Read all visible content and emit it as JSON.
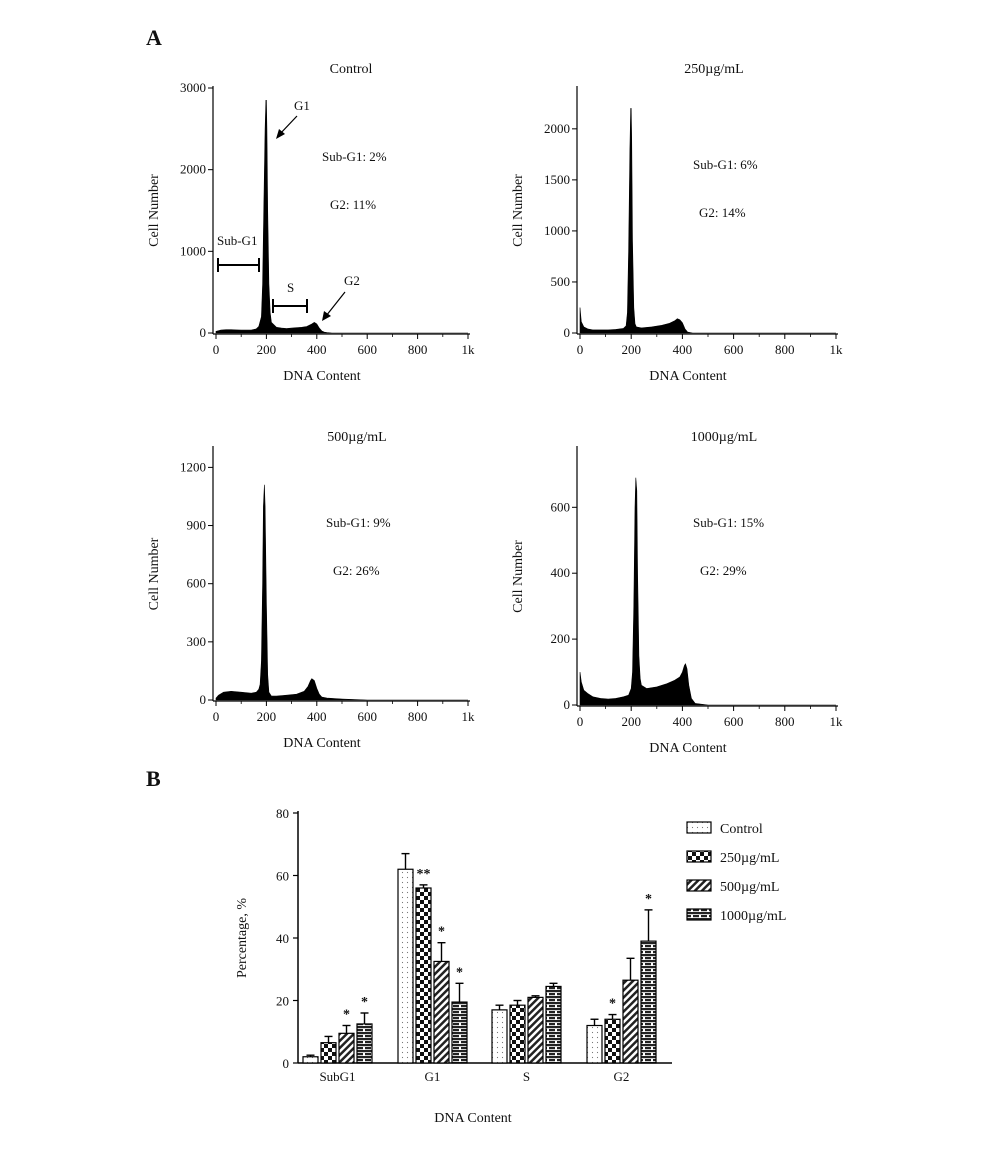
{
  "figure": {
    "panel_a_label": "A",
    "panel_b_label": "B"
  },
  "chart_data": [
    {
      "type": "area",
      "title": "Control",
      "xlabel": "DNA Content",
      "ylabel": "Cell Number",
      "xlim": [
        0,
        1000
      ],
      "ylim": [
        0,
        3000
      ],
      "x_ticks": [
        0,
        200,
        400,
        600,
        800,
        1000
      ],
      "x_tick_labels": [
        "0",
        "200",
        "400",
        "600",
        "800",
        "1k"
      ],
      "y_ticks": [
        0,
        1000,
        2000,
        3000
      ],
      "y_tick_labels": [
        "0",
        "1000",
        "2000",
        "3000"
      ],
      "histogram": {
        "x": [
          0,
          20,
          40,
          60,
          80,
          100,
          120,
          140,
          160,
          170,
          180,
          185,
          190,
          195,
          198,
          200,
          202,
          205,
          210,
          215,
          220,
          240,
          260,
          280,
          300,
          320,
          340,
          360,
          380,
          390,
          400,
          410,
          420,
          430,
          440,
          460,
          500,
          600,
          700,
          800,
          900,
          1000
        ],
        "y": [
          20,
          35,
          40,
          40,
          38,
          35,
          35,
          35,
          50,
          80,
          200,
          600,
          1600,
          2500,
          2850,
          2850,
          2500,
          1500,
          600,
          250,
          130,
          70,
          60,
          55,
          60,
          65,
          70,
          80,
          110,
          130,
          110,
          60,
          25,
          10,
          5,
          0,
          0,
          0,
          0,
          0,
          0,
          0
        ]
      },
      "annotations": {
        "sub_g1": "Sub-G1: 2%",
        "g2": "G2: 11%",
        "label_g1": "G1",
        "label_g2": "G2",
        "label_subg1_range": "Sub-G1",
        "label_s_range": "S"
      }
    },
    {
      "type": "area",
      "title": "250µg/mL",
      "xlabel": "DNA Content",
      "ylabel": "Cell Number",
      "xlim": [
        0,
        1000
      ],
      "ylim": [
        0,
        2400
      ],
      "x_ticks": [
        0,
        200,
        400,
        600,
        800,
        1000
      ],
      "x_tick_labels": [
        "0",
        "200",
        "400",
        "600",
        "800",
        "1k"
      ],
      "y_ticks": [
        0,
        500,
        1000,
        1500,
        2000
      ],
      "y_tick_labels": [
        "0",
        "500",
        "1000",
        "1500",
        "2000"
      ],
      "histogram": {
        "x": [
          0,
          5,
          15,
          30,
          50,
          80,
          110,
          140,
          170,
          180,
          185,
          190,
          195,
          198,
          200,
          202,
          205,
          210,
          215,
          220,
          240,
          280,
          320,
          350,
          370,
          380,
          390,
          400,
          410,
          420,
          440,
          500,
          1000
        ],
        "y": [
          250,
          110,
          60,
          40,
          30,
          30,
          30,
          35,
          45,
          70,
          200,
          800,
          1800,
          2200,
          2200,
          1900,
          900,
          250,
          90,
          60,
          50,
          60,
          75,
          95,
          120,
          140,
          130,
          100,
          40,
          10,
          0,
          0,
          0
        ]
      },
      "annotations": {
        "sub_g1": "Sub-G1: 6%",
        "g2": "G2: 14%"
      }
    },
    {
      "type": "area",
      "title": "500µg/mL",
      "xlabel": "DNA Content",
      "ylabel": "Cell Number",
      "xlim": [
        0,
        1000
      ],
      "ylim": [
        0,
        1300
      ],
      "x_ticks": [
        0,
        200,
        400,
        600,
        800,
        1000
      ],
      "x_tick_labels": [
        "0",
        "200",
        "400",
        "600",
        "800",
        "1k"
      ],
      "y_ticks": [
        0,
        300,
        600,
        900,
        1200
      ],
      "y_tick_labels": [
        "0",
        "300",
        "600",
        "900",
        "1200"
      ],
      "histogram": {
        "x": [
          0,
          10,
          30,
          60,
          100,
          140,
          160,
          170,
          175,
          180,
          185,
          188,
          192,
          195,
          200,
          205,
          210,
          220,
          240,
          280,
          320,
          350,
          365,
          375,
          380,
          390,
          400,
          410,
          420,
          440,
          500,
          600,
          700,
          1000
        ],
        "y": [
          10,
          25,
          40,
          45,
          40,
          35,
          40,
          55,
          80,
          200,
          600,
          1000,
          1110,
          1000,
          500,
          130,
          40,
          20,
          20,
          25,
          30,
          45,
          70,
          100,
          110,
          100,
          60,
          30,
          15,
          10,
          5,
          0,
          0,
          0
        ]
      },
      "annotations": {
        "sub_g1": "Sub-G1: 9%",
        "g2": "G2: 26%"
      }
    },
    {
      "type": "area",
      "title": "1000µg/mL",
      "xlabel": "DNA Content",
      "ylabel": "Cell Number",
      "xlim": [
        0,
        1000
      ],
      "ylim": [
        0,
        780
      ],
      "x_ticks": [
        0,
        200,
        400,
        600,
        800,
        1000
      ],
      "x_tick_labels": [
        "0",
        "200",
        "400",
        "600",
        "800",
        "1k"
      ],
      "y_ticks": [
        0,
        200,
        400,
        600
      ],
      "y_tick_labels": [
        "0",
        "200",
        "400",
        "600"
      ],
      "histogram": {
        "x": [
          0,
          5,
          15,
          30,
          50,
          80,
          110,
          140,
          170,
          190,
          200,
          205,
          210,
          215,
          218,
          222,
          225,
          230,
          235,
          240,
          260,
          300,
          340,
          370,
          390,
          400,
          408,
          412,
          418,
          425,
          435,
          450,
          500,
          1000
        ],
        "y": [
          100,
          70,
          45,
          35,
          25,
          20,
          18,
          20,
          25,
          30,
          50,
          100,
          300,
          600,
          690,
          650,
          400,
          150,
          80,
          60,
          50,
          55,
          65,
          75,
          85,
          100,
          120,
          125,
          110,
          60,
          20,
          5,
          0,
          0
        ]
      },
      "annotations": {
        "sub_g1": "Sub-G1: 15%",
        "g2": "G2: 29%"
      }
    },
    {
      "type": "bar",
      "xlabel": "DNA Content",
      "ylabel": "Percentage, %",
      "ylim": [
        0,
        80
      ],
      "y_ticks": [
        0,
        20,
        40,
        60,
        80
      ],
      "y_tick_labels": [
        "0",
        "20",
        "40",
        "60",
        "80"
      ],
      "categories": [
        "SubG1",
        "G1",
        "S",
        "G2"
      ],
      "legend_position": "right",
      "series": [
        {
          "name": "Control",
          "pattern": "dots",
          "values": [
            2,
            62,
            17,
            12
          ],
          "errors": [
            0.5,
            5,
            1.5,
            2
          ],
          "significance": [
            "",
            "",
            "",
            ""
          ]
        },
        {
          "name": "250µg/mL",
          "pattern": "checker",
          "values": [
            6.5,
            56,
            18.5,
            14
          ],
          "errors": [
            2,
            1,
            1.5,
            1.5
          ],
          "significance": [
            "",
            "**",
            "",
            "*"
          ]
        },
        {
          "name": "500µg/mL",
          "pattern": "diagonal",
          "values": [
            9.5,
            32.5,
            21,
            26.5
          ],
          "errors": [
            2.5,
            6,
            0.5,
            7
          ],
          "significance": [
            "*",
            "*",
            "",
            ""
          ]
        },
        {
          "name": "1000µg/mL",
          "pattern": "brick",
          "values": [
            12.5,
            19.5,
            24.5,
            39
          ],
          "errors": [
            3.5,
            6,
            1,
            10
          ],
          "significance": [
            "*",
            "*",
            "",
            "*"
          ]
        }
      ]
    }
  ]
}
